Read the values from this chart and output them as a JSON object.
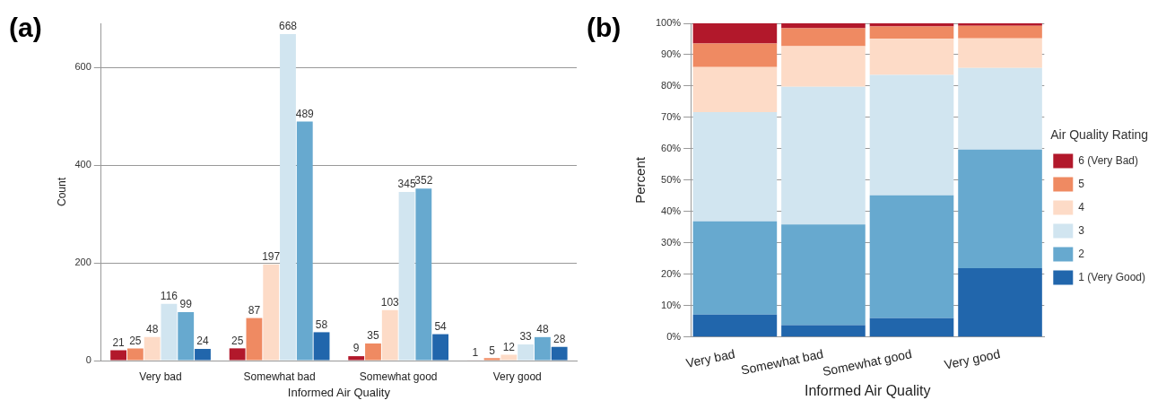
{
  "chart_data": [
    {
      "type": "bar",
      "annotations": [
        "(a)"
      ],
      "xlabel": "Informed Air Quality",
      "ylabel": "Count",
      "categories": [
        "Very bad",
        "Somewhat bad",
        "Somewhat good",
        "Very good"
      ],
      "ylim": [
        0,
        690
      ],
      "yticks": [
        0,
        200,
        400,
        600
      ],
      "grid": "y",
      "data_labels": true,
      "legend": false,
      "series": [
        {
          "color": "#b2182b",
          "values": [
            21,
            25,
            9,
            1
          ]
        },
        {
          "color": "#ef8a62",
          "values": [
            25,
            87,
            35,
            5
          ]
        },
        {
          "color": "#fddbc7",
          "values": [
            48,
            197,
            103,
            12
          ]
        },
        {
          "color": "#d1e5f0",
          "values": [
            116,
            668,
            345,
            33
          ]
        },
        {
          "color": "#67a9cf",
          "values": [
            99,
            489,
            352,
            48
          ]
        },
        {
          "color": "#2166ac",
          "values": [
            24,
            58,
            54,
            28
          ]
        }
      ]
    },
    {
      "type": "bar",
      "annotations": [
        "(b)"
      ],
      "xlabel": "Informed Air Quality",
      "ylabel": "Percent",
      "categories": [
        "Very bad",
        "Somewhat bad",
        "Somewhat good",
        "Very good"
      ],
      "stacked": true,
      "ylim": [
        0,
        100
      ],
      "yticks": [
        {
          "value": 0,
          "label": "0%"
        },
        {
          "value": 10,
          "label": "10%"
        },
        {
          "value": 20,
          "label": "20%"
        },
        {
          "value": 30,
          "label": "30%"
        },
        {
          "value": 40,
          "label": "40%"
        },
        {
          "value": 50,
          "label": "50%"
        },
        {
          "value": 60,
          "label": "60%"
        },
        {
          "value": 70,
          "label": "70%"
        },
        {
          "value": 80,
          "label": "80%"
        },
        {
          "value": 90,
          "label": "90%"
        },
        {
          "value": 100,
          "label": "100%"
        }
      ],
      "grid": "y",
      "legend": "right",
      "legend_title": "Air Quality Rating",
      "series": [
        {
          "name": "1 (Very Good)",
          "color": "#2166ac",
          "values": [
            7.2,
            3.8,
            6.0,
            22.0
          ]
        },
        {
          "name": "2",
          "color": "#67a9cf",
          "values": [
            29.7,
            32.1,
            39.2,
            37.8
          ]
        },
        {
          "name": "3",
          "color": "#d1e5f0",
          "values": [
            34.8,
            43.9,
            38.4,
            26.0
          ]
        },
        {
          "name": "4",
          "color": "#fddbc7",
          "values": [
            14.4,
            12.9,
            11.5,
            9.4
          ]
        },
        {
          "name": "5",
          "color": "#ef8a62",
          "values": [
            7.5,
            5.7,
            3.9,
            4.0
          ]
        },
        {
          "name": "6 (Very Bad)",
          "color": "#b2182b",
          "values": [
            6.4,
            1.6,
            1.0,
            0.8
          ]
        }
      ]
    }
  ]
}
